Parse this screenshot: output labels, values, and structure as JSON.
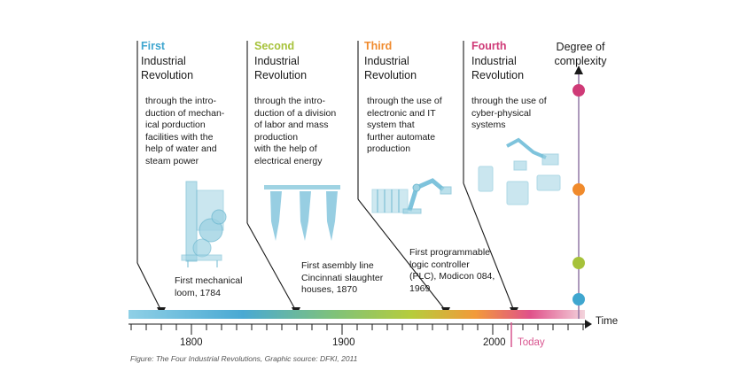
{
  "colors": {
    "first": "#3fa6cf",
    "second": "#a6c23a",
    "third": "#f08a2c",
    "fourth": "#cf3a77",
    "illustration": "#8fcbdd",
    "today": "#d9558f"
  },
  "revolutions": [
    {
      "ordinal": "First",
      "title": "Industrial\nRevolution",
      "description": "through the intro-\nduction of mechan-\nical porduction\nfacilities with the\nhelp of water and\nsteam power",
      "milestone": "First mechanical\nloom, 1784",
      "illustration_icon": "loom-icon"
    },
    {
      "ordinal": "Second",
      "title": "Industrial\nRevolution",
      "description": "through the intro-\nduction of a division\nof labor and mass\nproduction\nwith the help of\nelectrical energy",
      "milestone": "First asembly line\nCincinnati slaughter\nhouses, 1870",
      "illustration_icon": "assembly-line-icon"
    },
    {
      "ordinal": "Third",
      "title": "Industrial\nRevolution",
      "description": "through the use of\nelectronic and IT\nsystem that\nfurther automate\nproduction",
      "milestone": "First programmable\nlogic controller\n(PLC), Modicon 084,\n1969",
      "illustration_icon": "robot-arm-icon"
    },
    {
      "ordinal": "Fourth",
      "title": "Industrial\nRevolution",
      "description": "through the use of\ncyber-physical\nsystems",
      "milestone": "",
      "illustration_icon": "cyber-physical-devices-icon"
    }
  ],
  "complexity_axis": {
    "label": "Degree of\ncomplexity"
  },
  "timeline": {
    "ticks": [
      "1800",
      "1900",
      "2000"
    ],
    "today_label": "Today",
    "axis_label": "Time"
  },
  "caption": "Figure: The Four Industrial Revolutions, Graphic source: DFKI, 2011"
}
